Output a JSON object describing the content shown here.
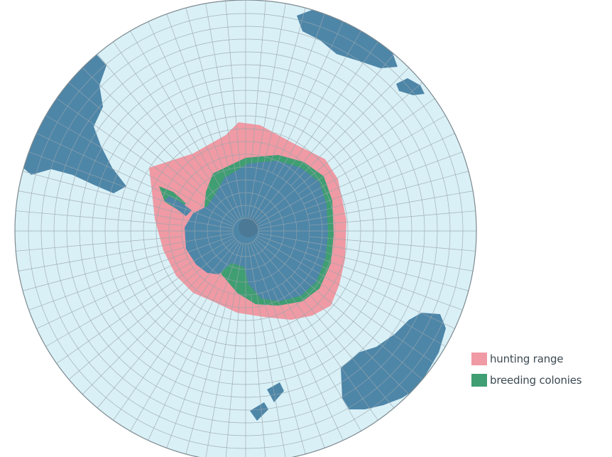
{
  "map": {
    "colors": {
      "ocean": "#d9f0f6",
      "grid": "#9aa7ad",
      "land": "#4e86a8",
      "hunting_range": "#ef9aa4",
      "breeding_colonies": "#3f9e72"
    }
  },
  "legend": {
    "items": [
      {
        "label": "hunting range",
        "color": "#ef9aa4",
        "key": "hunting_range"
      },
      {
        "label": "breeding colonies",
        "color": "#3f9e72",
        "key": "breeding_colonies"
      }
    ]
  }
}
